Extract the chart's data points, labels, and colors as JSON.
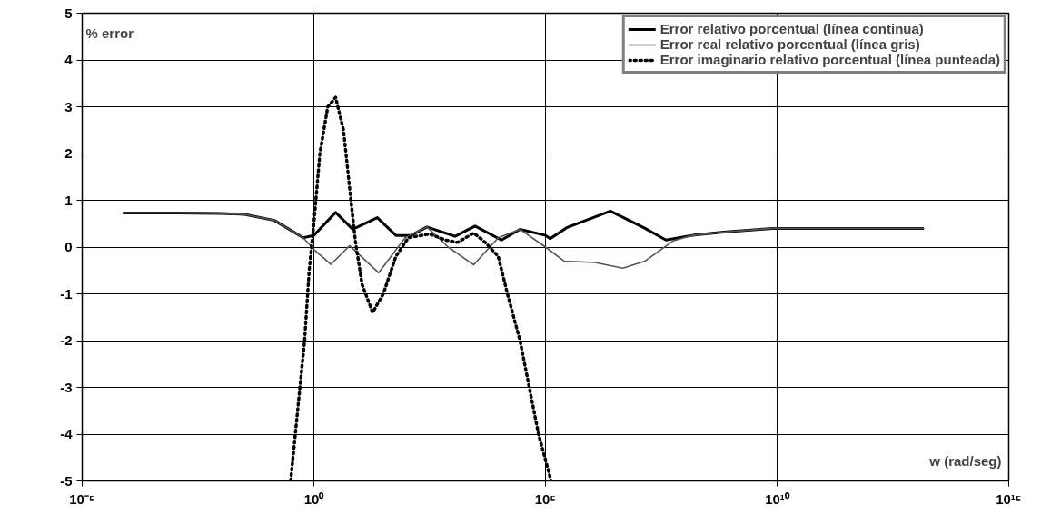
{
  "chart_data": {
    "type": "line",
    "xlabel": "w (rad/seg)",
    "ylabel": "% error",
    "log": "x",
    "xlim": [
      1e-05,
      1000000000000000.0
    ],
    "ylim": [
      -5,
      5
    ],
    "xticks": [
      {
        "value": 1e-05,
        "label": "10⁻⁵"
      },
      {
        "value": 1,
        "label": "10⁰"
      },
      {
        "value": 100000.0,
        "label": "10⁵"
      },
      {
        "value": 10000000000.0,
        "label": "10¹⁰"
      },
      {
        "value": 1000000000000000.0,
        "label": "10¹⁵"
      }
    ],
    "yticks": [
      -5,
      -4,
      -3,
      -2,
      -1,
      0,
      1,
      2,
      3,
      4,
      5
    ],
    "grid": true,
    "legend": "top right",
    "series": [
      {
        "name": "Error relativo porcentual (línea continua)",
        "color": "#000000",
        "line_style": "solid",
        "x": [
          7.9e-05,
          0.001,
          0.01,
          0.032,
          0.14,
          0.59,
          1,
          2.95,
          6.9,
          23.4,
          58.9,
          126,
          275,
          1120,
          3020,
          11200,
          28200,
          100000,
          126000,
          295000,
          2510000,
          14100000,
          39800000,
          145000000,
          692000000,
          7900000000.0,
          14000000000000.0
        ],
        "values": [
          0.73,
          0.73,
          0.72,
          0.7,
          0.57,
          0.2,
          0.25,
          0.74,
          0.38,
          0.63,
          0.25,
          0.25,
          0.43,
          0.23,
          0.45,
          0.15,
          0.38,
          0.25,
          0.18,
          0.42,
          0.77,
          0.4,
          0.15,
          0.25,
          0.32,
          0.4,
          0.4
        ]
      },
      {
        "name": "Error real relativo porcentual (línea gris)",
        "color": "#555555",
        "line_style": "solid",
        "x": [
          7.9e-05,
          0.001,
          0.01,
          0.032,
          0.14,
          0.59,
          1,
          2.34,
          5.9,
          25.1,
          93.3,
          275,
          794,
          2820,
          9550,
          28200,
          100000,
          251000,
          1170000,
          4680000,
          14100000,
          56200000,
          145000000,
          692000000,
          7900000000.0,
          14000000000000.0
        ],
        "values": [
          0.73,
          0.73,
          0.72,
          0.7,
          0.57,
          0.2,
          -0.05,
          -0.37,
          0.03,
          -0.55,
          0.2,
          0.43,
          0.0,
          -0.38,
          0.2,
          0.38,
          0.0,
          -0.3,
          -0.33,
          -0.45,
          -0.3,
          0.13,
          0.25,
          0.32,
          0.4,
          0.4
        ]
      },
      {
        "name": "Error imaginario relativo porcentual (línea punteada)",
        "color": "#000000",
        "line_style": "dotted",
        "x": [
          0.316,
          0.398,
          0.501,
          0.631,
          0.794,
          1,
          1.35,
          2.0,
          2.95,
          4.37,
          6.31,
          7.94,
          11.0,
          18.6,
          31.6,
          58.9,
          110,
          316,
          692,
          1260,
          2820,
          5010,
          9550,
          15100,
          28200,
          44700,
          70800,
          132000
        ],
        "values": [
          -5,
          -4.0,
          -3.0,
          -2.0,
          -0.5,
          0.5,
          2.0,
          3.0,
          3.2,
          2.5,
          1.0,
          0.1,
          -0.8,
          -1.4,
          -1.0,
          -0.2,
          0.2,
          0.28,
          0.15,
          0.1,
          0.3,
          0.1,
          -0.2,
          -1.0,
          -2.0,
          -3.0,
          -4.0,
          -5
        ]
      }
    ]
  }
}
